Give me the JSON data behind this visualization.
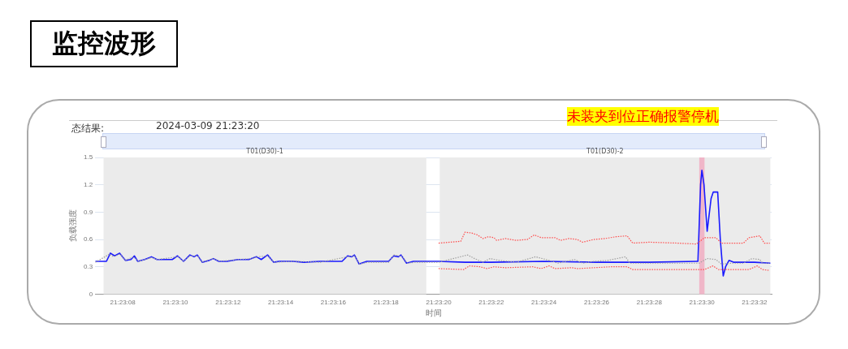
{
  "chart_data": {
    "type": "line",
    "title": "监控波形",
    "xlabel": "时间",
    "ylabel": "负载强度",
    "annotations": [
      "态结果:",
      "2024-03-09 21:23:20",
      "未装夹到位正确报警停机"
    ],
    "xlim": [
      "2024-03-09T21:23:06.95",
      "2024-03-09T21:23:32.65"
    ],
    "ylim": [
      0,
      1.5
    ],
    "yticks": [
      0,
      0.3,
      0.6,
      0.9,
      1.2,
      1.5
    ],
    "xticks": [
      {
        "value": "2024-03-09T21:23:08",
        "label": "21:23:08"
      },
      {
        "value": "2024-03-09T21:23:10",
        "label": "21:23:10"
      },
      {
        "value": "2024-03-09T21:23:12",
        "label": "21:23:12"
      },
      {
        "value": "2024-03-09T21:23:14",
        "label": "21:23:14"
      },
      {
        "value": "2024-03-09T21:23:16",
        "label": "21:23:16"
      },
      {
        "value": "2024-03-09T21:23:18",
        "label": "21:23:18"
      },
      {
        "value": "2024-03-09T21:23:20",
        "label": "21:23:20"
      },
      {
        "value": "2024-03-09T21:23:22",
        "label": "21:23:22"
      },
      {
        "value": "2024-03-09T21:23:24",
        "label": "21:23:24"
      },
      {
        "value": "2024-03-09T21:23:26",
        "label": "21:23:26"
      },
      {
        "value": "2024-03-09T21:23:28",
        "label": "21:23:28"
      },
      {
        "value": "2024-03-09T21:23:30",
        "label": "21:23:30"
      },
      {
        "value": "2024-03-09T21:23:32",
        "label": "21:23:32"
      }
    ],
    "grid": "y",
    "legend": false,
    "marker": "none",
    "bands": [
      {
        "axis": "x",
        "from": "2024-03-09T21:23:07.27",
        "to": "2024-03-09T21:23:19.53",
        "label": "T01(D30)-1",
        "color": "#ebebeb"
      },
      {
        "axis": "x",
        "from": "2024-03-09T21:23:20.04",
        "to": "2024-03-09T21:23:32.6",
        "label": "T01(D30)-2",
        "color": "#ebebeb"
      },
      {
        "axis": "x",
        "from": "2024-03-09T21:23:29.9",
        "to": "2024-03-09T21:23:30.1",
        "color": "#f0b6c8"
      }
    ],
    "series": [
      {
        "color": "#ff4d4d",
        "line_style": "dotted",
        "x": [
          "2024-03-09T21:23:20",
          "2024-03-09T21:23:20.84",
          "2024-03-09T21:23:21",
          "2024-03-09T21:23:21.26",
          "2024-03-09T21:23:21.47",
          "2024-03-09T21:23:21.68",
          "2024-03-09T21:23:21.89",
          "2024-03-09T21:23:22.1",
          "2024-03-09T21:23:22.2",
          "2024-03-09T21:23:22.53",
          "2024-03-09T21:23:22.95",
          "2024-03-09T21:23:23.37",
          "2024-03-09T21:23:23.63",
          "2024-03-09T21:23:23.89",
          "2024-03-09T21:23:24.42",
          "2024-03-09T21:23:24.63",
          "2024-03-09T21:23:24.95",
          "2024-03-09T21:23:25.26",
          "2024-03-09T21:23:25.47",
          "2024-03-09T21:23:25.89",
          "2024-03-09T21:23:26.32",
          "2024-03-09T21:23:26.74",
          "2024-03-09T21:23:27.16",
          "2024-03-09T21:23:27.37",
          "2024-03-09T21:23:28",
          "2024-03-09T21:23:29.05",
          "2024-03-09T21:23:29.79",
          "2024-03-09T21:23:30.1",
          "2024-03-09T21:23:30.53",
          "2024-03-09T21:23:30.74",
          "2024-03-09T21:23:31.58",
          "2024-03-09T21:23:31.79",
          "2024-03-09T21:23:32.2",
          "2024-03-09T21:23:32.37",
          "2024-03-09T21:23:32.58"
        ],
        "values": [
          0.56,
          0.58,
          0.68,
          0.67,
          0.65,
          0.61,
          0.63,
          0.62,
          0.59,
          0.61,
          0.59,
          0.6,
          0.65,
          0.62,
          0.62,
          0.59,
          0.61,
          0.6,
          0.57,
          0.6,
          0.61,
          0.63,
          0.64,
          0.56,
          0.57,
          0.56,
          0.55,
          0.62,
          0.62,
          0.56,
          0.56,
          0.62,
          0.64,
          0.56,
          0.56
        ]
      },
      {
        "color": "#ff4d4d",
        "line_style": "dotted",
        "x": [
          "2024-03-09T21:23:20",
          "2024-03-09T21:23:20.95",
          "2024-03-09T21:23:21.16",
          "2024-03-09T21:23:21.58",
          "2024-03-09T21:23:21.84",
          "2024-03-09T21:23:22.1",
          "2024-03-09T21:23:22.53",
          "2024-03-09T21:23:23.58",
          "2024-03-09T21:23:23.89",
          "2024-03-09T21:23:24.2",
          "2024-03-09T21:23:24.42",
          "2024-03-09T21:23:25.05",
          "2024-03-09T21:23:25.26",
          "2024-03-09T21:23:25.89",
          "2024-03-09T21:23:26.53",
          "2024-03-09T21:23:27.16",
          "2024-03-09T21:23:27.37",
          "2024-03-09T21:23:28.5",
          "2024-03-09T21:23:29.47",
          "2024-03-09T21:23:30.1",
          "2024-03-09T21:23:30.42",
          "2024-03-09T21:23:30.63",
          "2024-03-09T21:23:31.79",
          "2024-03-09T21:23:32.1",
          "2024-03-09T21:23:32.3",
          "2024-03-09T21:23:32.58"
        ],
        "values": [
          0.28,
          0.27,
          0.31,
          0.3,
          0.28,
          0.3,
          0.29,
          0.3,
          0.28,
          0.31,
          0.28,
          0.29,
          0.28,
          0.29,
          0.3,
          0.3,
          0.27,
          0.27,
          0.27,
          0.27,
          0.31,
          0.27,
          0.27,
          0.31,
          0.27,
          0.26
        ]
      },
      {
        "color": "#a0a0a0",
        "line_style": "dotted",
        "x": [
          "2024-03-09T21:23:06.96",
          "2024-03-09T21:23:07.5",
          "2024-03-09T21:23:07.65",
          "2024-03-09T21:23:07.9",
          "2024-03-09T21:23:08.1",
          "2024-03-09T21:23:08.4",
          "2024-03-09T21:23:08.6",
          "2024-03-09T21:23:09.1",
          "2024-03-09T21:23:09.3",
          "2024-03-09T21:23:10.1",
          "2024-03-09T21:23:10.3",
          "2024-03-09T21:23:10.55",
          "2024-03-09T21:23:10.85",
          "2024-03-09T21:23:11",
          "2024-03-09T21:23:11.45",
          "2024-03-09T21:23:11.7",
          "2024-03-09T21:23:12.4",
          "2024-03-09T21:23:12.9",
          "2024-03-09T21:23:13.1",
          "2024-03-09T21:23:13.5",
          "2024-03-09T21:23:13.75",
          "2024-03-09T21:23:14.5",
          "2024-03-09T21:23:15.5",
          "2024-03-09T21:23:16.55",
          "2024-03-09T21:23:16.8",
          "2024-03-09T21:23:17",
          "2024-03-09T21:23:17.3",
          "2024-03-09T21:23:18.1",
          "2024-03-09T21:23:18.3",
          "2024-03-09T21:23:18.5",
          "2024-03-09T21:23:18.6",
          "2024-03-09T21:23:18.8",
          "2024-03-09T21:23:19.1",
          "2024-03-09T21:23:20",
          "2024-03-09T21:23:21.1",
          "2024-03-09T21:23:21.37",
          "2024-03-09T21:23:21.68",
          "2024-03-09T21:23:21.95",
          "2024-03-09T21:23:22.32",
          "2024-03-09T21:23:22.95",
          "2024-03-09T21:23:23.68",
          "2024-03-09T21:23:24.2",
          "2024-03-09T21:23:24.53",
          "2024-03-09T21:23:25.16",
          "2024-03-09T21:23:25.47",
          "2024-03-09T21:23:25.89",
          "2024-03-09T21:23:26.42",
          "2024-03-09T21:23:27.1",
          "2024-03-09T21:23:27.26",
          "2024-03-09T21:23:27.89",
          "2024-03-09T21:23:29.05",
          "2024-03-09T21:23:29.9",
          "2024-03-09T21:23:30.2",
          "2024-03-09T21:23:30.53",
          "2024-03-09T21:23:30.74",
          "2024-03-09T21:23:31.16",
          "2024-03-09T21:23:31.58",
          "2024-03-09T21:23:31.9",
          "2024-03-09T21:23:32.2",
          "2024-03-09T21:23:32.3",
          "2024-03-09T21:23:32.58"
        ],
        "values": [
          0.35,
          0.44,
          0.41,
          0.44,
          0.37,
          0.41,
          0.36,
          0.4,
          0.38,
          0.41,
          0.36,
          0.42,
          0.42,
          0.35,
          0.39,
          0.36,
          0.38,
          0.39,
          0.41,
          0.42,
          0.35,
          0.36,
          0.35,
          0.41,
          0.42,
          0.33,
          0.35,
          0.35,
          0.43,
          0.42,
          0.42,
          0.34,
          0.35,
          0.35,
          0.43,
          0.39,
          0.35,
          0.39,
          0.37,
          0.35,
          0.41,
          0.37,
          0.34,
          0.38,
          0.34,
          0.36,
          0.37,
          0.41,
          0.34,
          0.34,
          0.34,
          0.34,
          0.39,
          0.38,
          0.33,
          0.34,
          0.34,
          0.39,
          0.38,
          0.34,
          0.34
        ]
      },
      {
        "color": "#1a1aff",
        "line_style": "solid",
        "x": [
          "2024-03-09T21:23:06.96",
          "2024-03-09T21:23:07.17",
          "2024-03-09T21:23:07.38",
          "2024-03-09T21:23:07.53",
          "2024-03-09T21:23:07.69",
          "2024-03-09T21:23:07.88",
          "2024-03-09T21:23:08.1",
          "2024-03-09T21:23:08.31",
          "2024-03-09T21:23:08.44",
          "2024-03-09T21:23:08.57",
          "2024-03-09T21:23:08.83",
          "2024-03-09T21:23:09.09",
          "2024-03-09T21:23:09.3",
          "2024-03-09T21:23:09.88",
          "2024-03-09T21:23:10.08",
          "2024-03-09T21:23:10.31",
          "2024-03-09T21:23:10.55",
          "2024-03-09T21:23:10.71",
          "2024-03-09T21:23:10.83",
          "2024-03-09T21:23:11.02",
          "2024-03-09T21:23:11.28",
          "2024-03-09T21:23:11.44",
          "2024-03-09T21:23:11.65",
          "2024-03-09T21:23:11.96",
          "2024-03-09T21:23:12.38",
          "2024-03-09T21:23:12.79",
          "2024-03-09T21:23:13.08",
          "2024-03-09T21:23:13.26",
          "2024-03-09T21:23:13.5",
          "2024-03-09T21:23:13.73",
          "2024-03-09T21:23:13.94",
          "2024-03-09T21:23:14.46",
          "2024-03-09T21:23:14.88",
          "2024-03-09T21:23:15.5",
          "2024-03-09T21:23:16.33",
          "2024-03-09T21:23:16.54",
          "2024-03-09T21:23:16.7",
          "2024-03-09T21:23:16.8",
          "2024-03-09T21:23:16.98",
          "2024-03-09T21:23:17.27",
          "2024-03-09T21:23:17.79",
          "2024-03-09T21:23:18.1",
          "2024-03-09T21:23:18.29",
          "2024-03-09T21:23:18.47",
          "2024-03-09T21:23:18.57",
          "2024-03-09T21:23:18.78",
          "2024-03-09T21:23:19.04",
          "2024-03-09T21:23:20",
          "2024-03-09T21:23:21",
          "2024-03-09T21:23:22",
          "2024-03-09T21:23:24",
          "2024-03-09T21:23:26",
          "2024-03-09T21:23:28",
          "2024-03-09T21:23:29.8",
          "2024-03-09T21:23:29.85",
          "2024-03-09T21:23:29.95",
          "2024-03-09T21:23:30",
          "2024-03-09T21:23:30.08",
          "2024-03-09T21:23:30.2",
          "2024-03-09T21:23:30.35",
          "2024-03-09T21:23:30.43",
          "2024-03-09T21:23:30.6",
          "2024-03-09T21:23:30.7",
          "2024-03-09T21:23:30.81",
          "2024-03-09T21:23:30.9",
          "2024-03-09T21:23:31.03",
          "2024-03-09T21:23:31.2",
          "2024-03-09T21:23:32",
          "2024-03-09T21:23:32.6"
        ],
        "values": [
          0.36,
          0.36,
          0.36,
          0.45,
          0.42,
          0.45,
          0.37,
          0.38,
          0.42,
          0.36,
          0.38,
          0.41,
          0.38,
          0.38,
          0.42,
          0.36,
          0.43,
          0.41,
          0.43,
          0.35,
          0.37,
          0.39,
          0.36,
          0.36,
          0.38,
          0.38,
          0.41,
          0.38,
          0.43,
          0.35,
          0.36,
          0.36,
          0.35,
          0.36,
          0.36,
          0.42,
          0.41,
          0.43,
          0.33,
          0.36,
          0.36,
          0.36,
          0.42,
          0.41,
          0.43,
          0.34,
          0.36,
          0.36,
          0.35,
          0.35,
          0.36,
          0.35,
          0.35,
          0.36,
          0.36,
          1.2,
          1.36,
          1.2,
          0.69,
          1.05,
          1.12,
          1.12,
          0.6,
          0.2,
          0.3,
          0.37,
          0.35,
          0.35,
          0.34
        ]
      }
    ]
  }
}
